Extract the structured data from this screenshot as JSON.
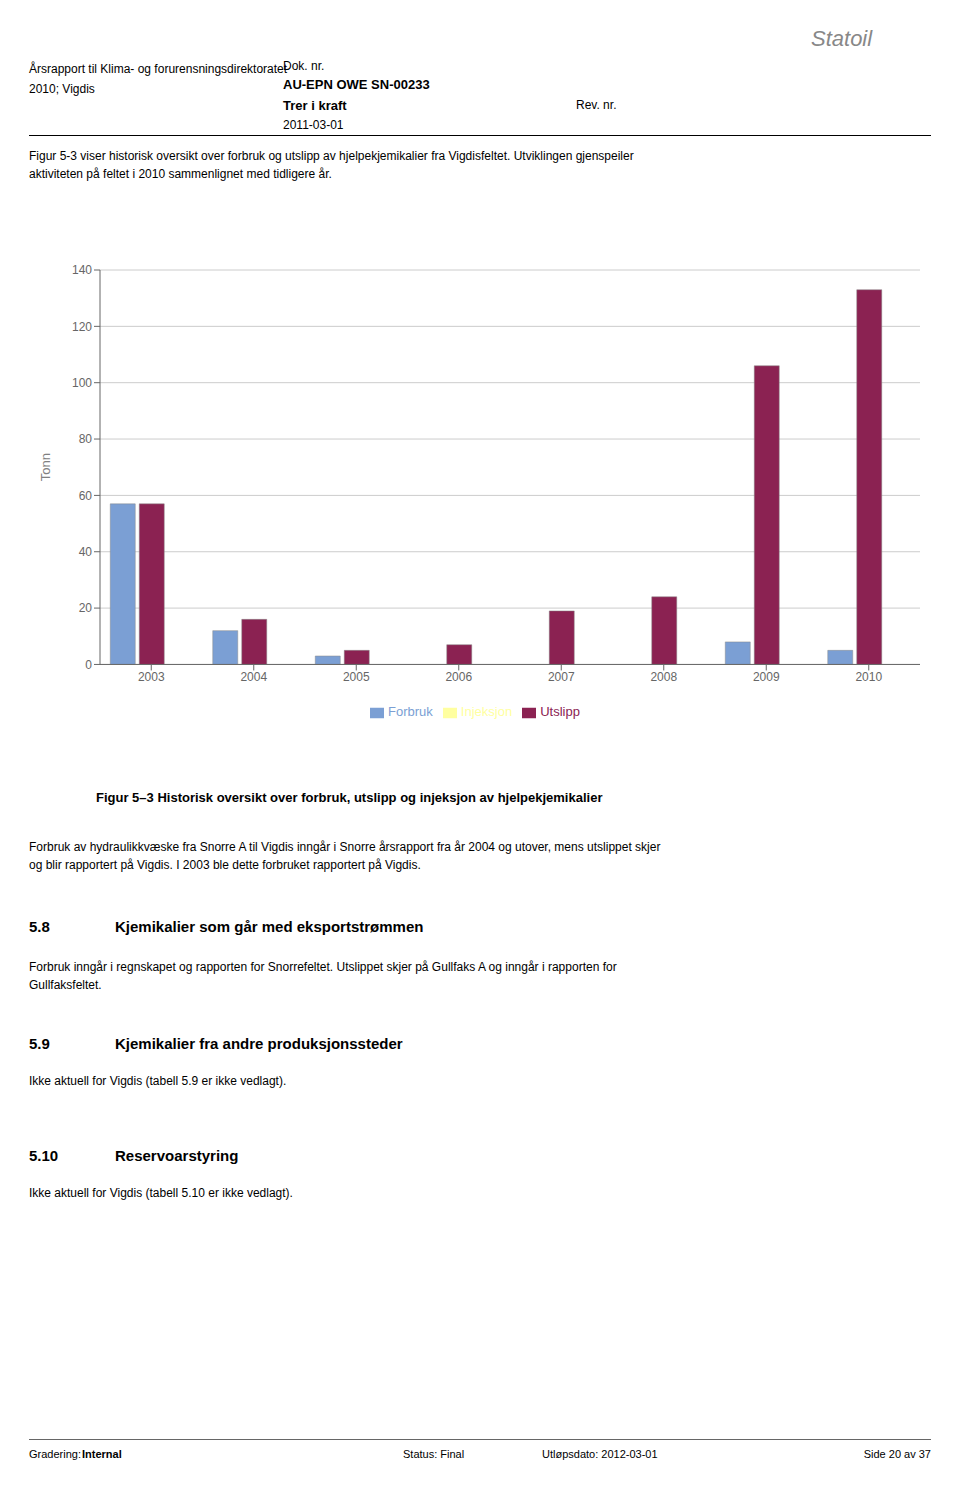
{
  "chart_data": {
    "type": "bar",
    "title": "Figur 5–3 Historisk oversikt over forbruk, utslipp og injeksjon av hjelpekjemikalier",
    "ylabel": "Tonn",
    "categories": [
      "2003",
      "2004",
      "2005",
      "2006",
      "2007",
      "2008",
      "2009",
      "2010"
    ],
    "series": [
      {
        "name": "Forbruk",
        "color": "#7B9FD4",
        "values": [
          57,
          12,
          3,
          0,
          0,
          0,
          8,
          5
        ]
      },
      {
        "name": "Utslipp",
        "color": "#8B2252",
        "values": [
          57,
          16,
          5,
          7,
          19,
          24,
          106,
          133
        ]
      },
      {
        "name": "Injeksjon",
        "color": "#FFFFA0",
        "values": [
          0,
          0,
          0,
          0,
          0,
          0,
          0,
          0
        ]
      }
    ],
    "ylim": [
      0,
      140
    ],
    "yticks": [
      0,
      20,
      40,
      60,
      80,
      100,
      120,
      140
    ],
    "grid": true,
    "legend": "bottom",
    "annotations": [
      "Årsrapport til Klima- og forurensningsdirektoratet",
      "2010; Vigdis",
      "Dok. nr.",
      "AU-EPN OWE SN-00233",
      "Trer i kraft",
      "2011-03-01",
      "Rev. nr.",
      "Statoil",
      "Figur 5-3 viser historisk oversikt over forbruk og utslipp av hjelpekjemikalier fra Vigdisfeltet. Utviklingen gjenspeiler",
      "aktiviteten på feltet i 2010 sammenlignet med tidligere år.",
      "Forbruk av hydraulikkvæske fra Snorre A til Vigdis inngår i Snorre årsrapport fra år 2004 og utover, mens utslippet skjer",
      "og blir rapportert på Vigdis. I 2003 ble dette forbruket rapportert på Vigdis.",
      "5.8",
      "Kjemikalier som går med eksportstrømmen",
      "Forbruk inngår i regnskapet og rapporten for Snorrefeltet. Utslippet skjer på Gullfaks A og inngår i rapporten for",
      "Gullfaksfeltet.",
      "5.9",
      "Kjemikalier fra andre produksjonssteder",
      "Ikke aktuell for Vigdis (tabell 5.9 er ikke vedlagt).",
      "5.10",
      "Reservoarstyring",
      "Ikke aktuell for Vigdis (tabell 5.10 er ikke vedlagt).",
      "Gradering:",
      "Internal",
      "Status: Final",
      "Utløpsdato: 2012-03-01",
      "Side 20 av 37"
    ]
  }
}
